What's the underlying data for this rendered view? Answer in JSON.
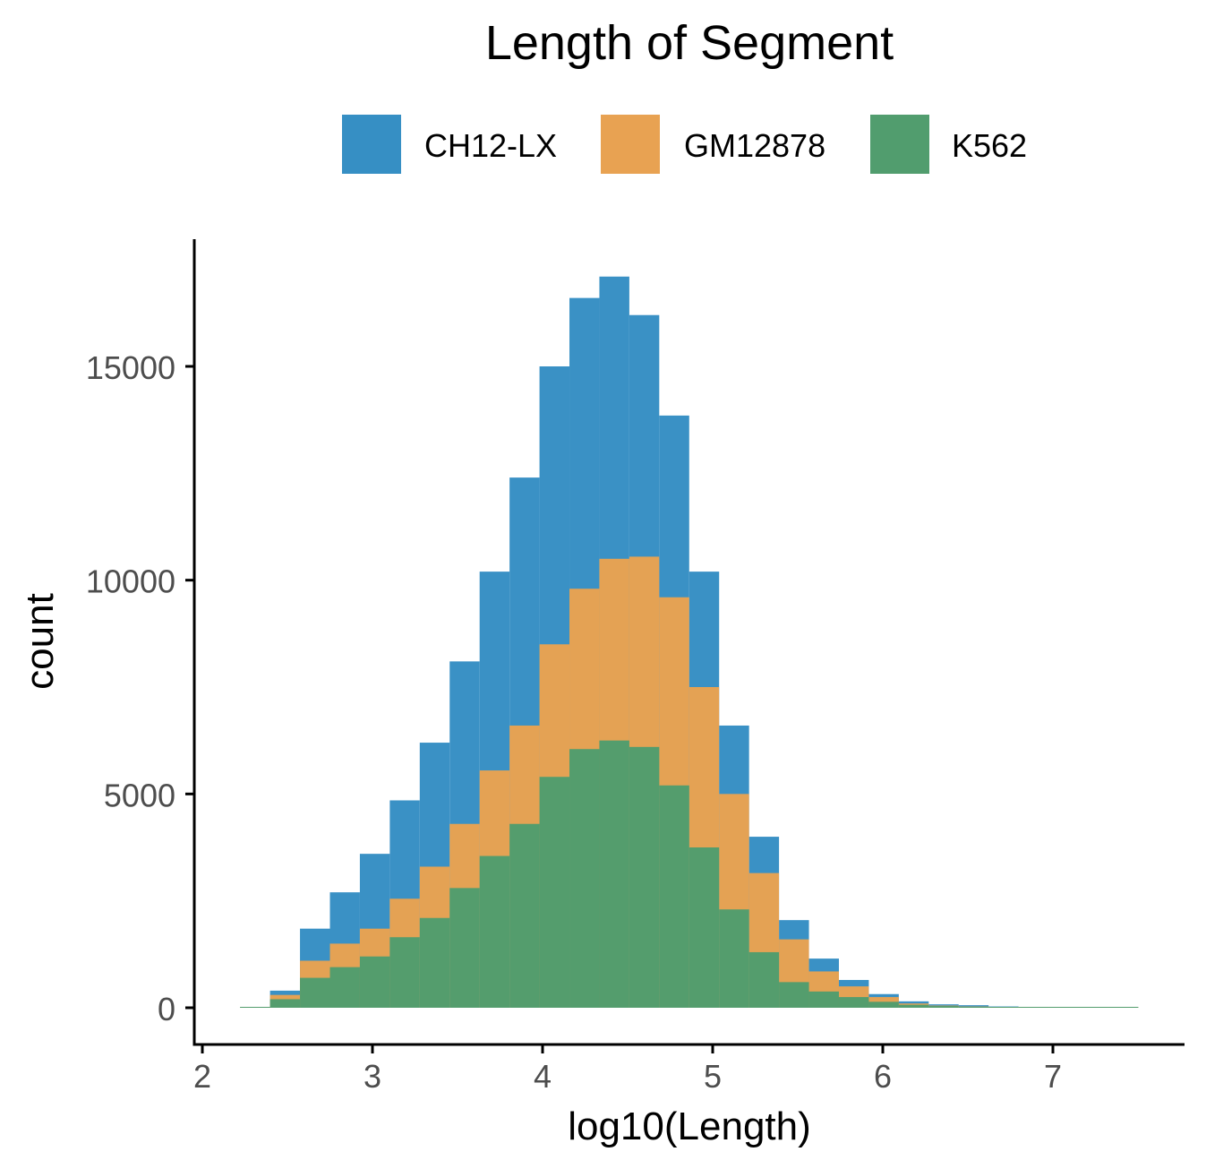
{
  "chart_data": {
    "type": "bar",
    "title": "Length of Segment",
    "xlabel": "log10(Length)",
    "ylabel": "count",
    "xlim": [
      2,
      7.75
    ],
    "ylim": [
      -1300,
      17600
    ],
    "x_ticks": [
      2,
      3,
      4,
      5,
      6,
      7
    ],
    "y_ticks": [
      0,
      5000,
      10000,
      15000
    ],
    "grid": false,
    "legend_position": "top",
    "bin_width": 0.176,
    "bin_centers": [
      2.31,
      2.486,
      2.662,
      2.838,
      3.014,
      3.19,
      3.366,
      3.542,
      3.718,
      3.894,
      4.07,
      4.246,
      4.422,
      4.598,
      4.774,
      4.95,
      5.126,
      5.302,
      5.478,
      5.654,
      5.83,
      6.006,
      6.182,
      6.358,
      6.534,
      6.71,
      6.886,
      7.062,
      7.238,
      7.414
    ],
    "series": [
      {
        "name": "CH12-LX",
        "color": "#368fc4",
        "values": [
          10,
          400,
          1850,
          2700,
          3600,
          4850,
          6200,
          8100,
          10200,
          12400,
          15000,
          16600,
          17100,
          16200,
          13850,
          10200,
          6600,
          4000,
          2050,
          1150,
          650,
          320,
          150,
          80,
          60,
          30,
          20,
          15,
          10,
          5
        ]
      },
      {
        "name": "GM12878",
        "color": "#e8a252",
        "values": [
          5,
          300,
          1100,
          1500,
          1850,
          2550,
          3300,
          4300,
          5550,
          6600,
          8500,
          9800,
          10500,
          10550,
          9600,
          7500,
          5000,
          3150,
          1600,
          850,
          500,
          250,
          100,
          50,
          30,
          20,
          15,
          10,
          20,
          5
        ]
      },
      {
        "name": "K562",
        "color": "#519d6e",
        "values": [
          3,
          200,
          700,
          950,
          1200,
          1650,
          2100,
          2800,
          3550,
          4300,
          5400,
          6050,
          6250,
          6100,
          5200,
          3750,
          2300,
          1300,
          600,
          380,
          250,
          140,
          70,
          40,
          25,
          15,
          10,
          8,
          5,
          3
        ]
      }
    ]
  }
}
